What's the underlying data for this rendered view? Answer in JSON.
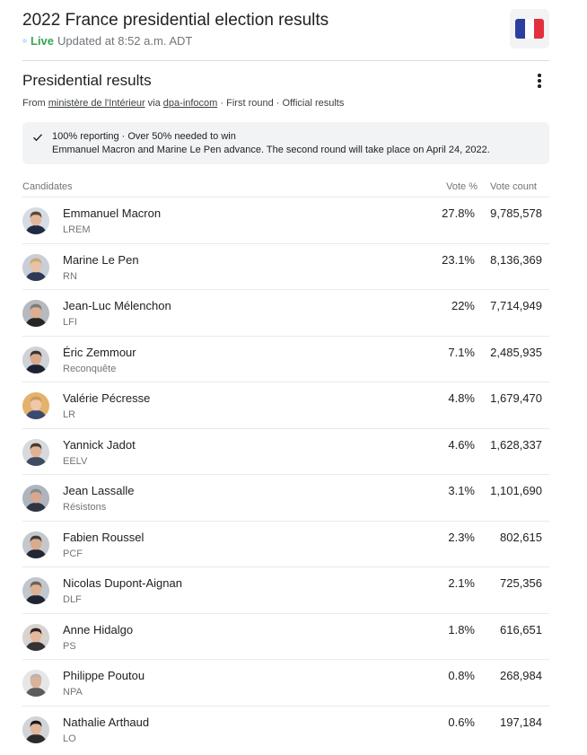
{
  "header": {
    "title": "2022 France presidential election results",
    "live_label": "Live",
    "updated": "Updated at 8:52 a.m. ADT",
    "flag_colors": [
      "#2d3f9e",
      "#ffffff",
      "#e1303e"
    ]
  },
  "section": {
    "title": "Presidential results",
    "more_icon": "more-vert-icon",
    "source_prefix": "From",
    "source_link": "ministère de l'Intérieur",
    "source_via": "via",
    "via_link": "dpa-infocom",
    "source_suffix": "· First round · Official results"
  },
  "notice": {
    "icon": "check-icon",
    "line1": "100% reporting · Over 50% needed to win",
    "line2": "Emmanuel Macron and Marine Le Pen advance. The second round will take place on April 24, 2022."
  },
  "table": {
    "headers": {
      "candidates": "Candidates",
      "vote_pct": "Vote %",
      "vote_count": "Vote count"
    },
    "rows": [
      {
        "name": "Emmanuel Macron",
        "party": "LREM",
        "pct": "27.8%",
        "count": "9,785,578",
        "hair": "#5a4636",
        "skin": "#e2b79a",
        "bg": "#d7dbe2",
        "suit": "#1f2b44"
      },
      {
        "name": "Marine Le Pen",
        "party": "RN",
        "pct": "23.1%",
        "count": "8,136,369",
        "hair": "#c8a878",
        "skin": "#e9c1a4",
        "bg": "#c9cfd6",
        "suit": "#2e3a55"
      },
      {
        "name": "Jean-Luc Mélenchon",
        "party": "LFI",
        "pct": "22%",
        "count": "7,714,949",
        "hair": "#7b7b7b",
        "skin": "#dcae92",
        "bg": "#b6b9bd",
        "suit": "#262626"
      },
      {
        "name": "Éric Zemmour",
        "party": "Reconquête",
        "pct": "7.1%",
        "count": "2,485,935",
        "hair": "#3b3430",
        "skin": "#d8a98c",
        "bg": "#cfd3d8",
        "suit": "#1d2233"
      },
      {
        "name": "Valérie Pécresse",
        "party": "LR",
        "pct": "4.8%",
        "count": "1,679,470",
        "hair": "#c79a62",
        "skin": "#efc7a9",
        "bg": "#e4b26b",
        "suit": "#3a4a70"
      },
      {
        "name": "Yannick Jadot",
        "party": "EELV",
        "pct": "4.6%",
        "count": "1,628,337",
        "hair": "#4b3a2c",
        "skin": "#e0b294",
        "bg": "#d6d9dd",
        "suit": "#3f4b5e"
      },
      {
        "name": "Jean Lassalle",
        "party": "Résistons",
        "pct": "3.1%",
        "count": "1,101,690",
        "hair": "#8a8a8a",
        "skin": "#d6a98f",
        "bg": "#aeb5bf",
        "suit": "#2f3542"
      },
      {
        "name": "Fabien Roussel",
        "party": "PCF",
        "pct": "2.3%",
        "count": "802,615",
        "hair": "#3d3a38",
        "skin": "#d9aa8d",
        "bg": "#c4c8cc",
        "suit": "#222733"
      },
      {
        "name": "Nicolas Dupont-Aignan",
        "party": "DLF",
        "pct": "2.1%",
        "count": "725,356",
        "hair": "#6b6157",
        "skin": "#dcb096",
        "bg": "#c2c7cd",
        "suit": "#1e2433"
      },
      {
        "name": "Anne Hidalgo",
        "party": "PS",
        "pct": "1.8%",
        "count": "616,651",
        "hair": "#2b2120",
        "skin": "#e6b99c",
        "bg": "#d8d3cf",
        "suit": "#343434"
      },
      {
        "name": "Philippe Poutou",
        "party": "NPA",
        "pct": "0.8%",
        "count": "268,984",
        "hair": "#b9b4ac",
        "skin": "#dcb39a",
        "bg": "#e6e6e6",
        "suit": "#5c5c5c"
      },
      {
        "name": "Nathalie Arthaud",
        "party": "LO",
        "pct": "0.6%",
        "count": "197,184",
        "hair": "#1e1a1a",
        "skin": "#e2b698",
        "bg": "#d2d4d8",
        "suit": "#2b2b2b"
      }
    ]
  }
}
